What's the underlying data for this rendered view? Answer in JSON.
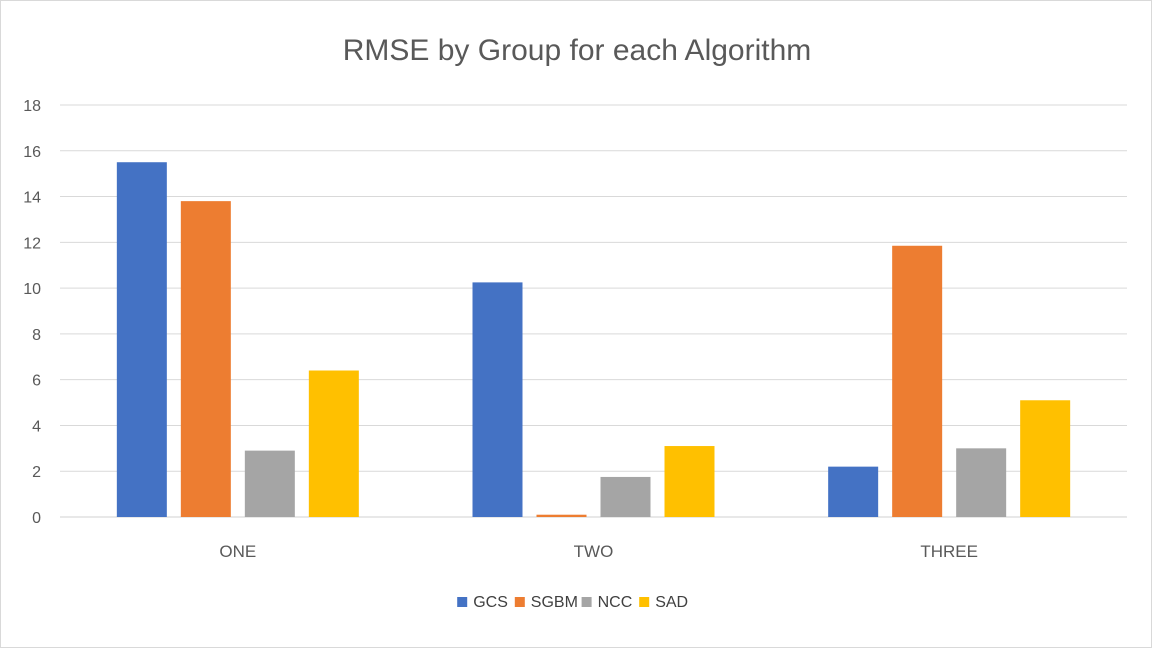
{
  "chart_data": {
    "type": "bar",
    "title": "RMSE by Group for each Algorithm",
    "xlabel": "",
    "ylabel": "",
    "categories": [
      "ONE",
      "TWO",
      "THREE"
    ],
    "series": [
      {
        "name": "GCS",
        "color": "#4472c4",
        "values": [
          15.5,
          10.25,
          2.2
        ]
      },
      {
        "name": "SGBM",
        "color": "#ed7d31",
        "values": [
          13.8,
          0.1,
          11.85
        ]
      },
      {
        "name": "NCC",
        "color": "#a5a5a5",
        "values": [
          2.9,
          1.75,
          3.0
        ]
      },
      {
        "name": "SAD",
        "color": "#ffc000",
        "values": [
          6.4,
          3.1,
          5.1
        ]
      }
    ],
    "ylim": [
      0,
      18
    ],
    "yticks": [
      0,
      2,
      4,
      6,
      8,
      10,
      12,
      14,
      16,
      18
    ],
    "grid": true,
    "legend": "bottom"
  }
}
